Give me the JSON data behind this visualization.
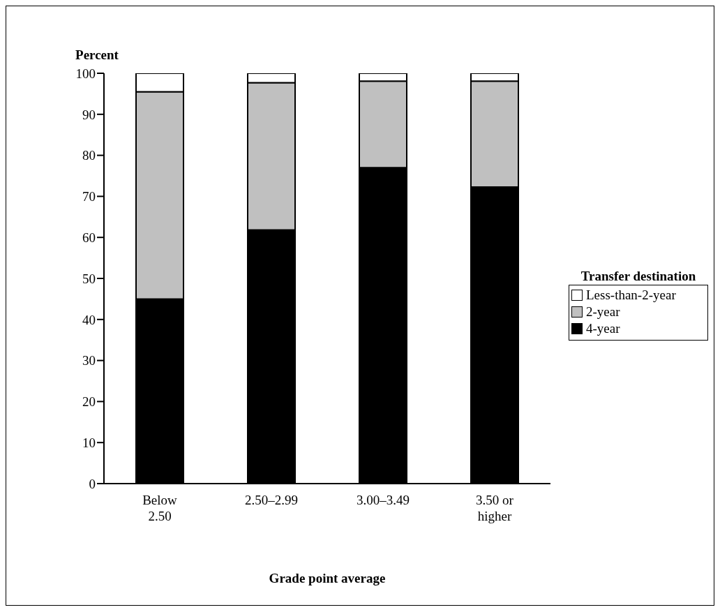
{
  "chart_data": {
    "type": "bar",
    "stacked": true,
    "ylabel": "Percent",
    "xlabel": "Grade point average",
    "legend_title": "Transfer destination",
    "legend": "right",
    "categories": [
      "Below 2.50",
      "2.50–2.99",
      "3.00–3.49",
      "3.50 or higher"
    ],
    "series": [
      {
        "name": "4-year",
        "color": "#000000",
        "values": [
          45,
          61.8,
          77,
          72.3
        ]
      },
      {
        "name": "2-year",
        "color": "#c0c0c0",
        "values": [
          50.5,
          35.9,
          21.1,
          25.8
        ]
      },
      {
        "name": "Less-than-2-year",
        "color": "#ffffff",
        "values": [
          4.5,
          2.3,
          1.9,
          1.9
        ]
      }
    ],
    "ylim": [
      0,
      100
    ],
    "yticks": [
      0,
      10,
      20,
      30,
      40,
      50,
      60,
      70,
      80,
      90,
      100
    ],
    "grid": false
  }
}
